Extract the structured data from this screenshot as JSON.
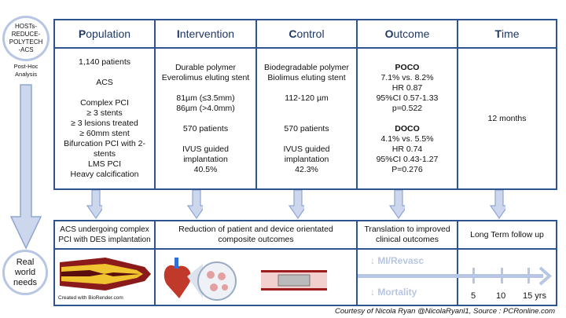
{
  "trial": {
    "name": "HOSTs-REDUCE-POLYTECH-ACS",
    "subtitle": "Post-Hoc Analysis"
  },
  "pico": {
    "headers": [
      {
        "initial": "P",
        "rest": "opulation"
      },
      {
        "initial": "I",
        "rest": "ntervention"
      },
      {
        "initial": "C",
        "rest": "ontrol"
      },
      {
        "initial": "O",
        "rest": "utcome"
      },
      {
        "initial": "T",
        "rest": "ime"
      }
    ],
    "population": [
      "1,140 patients",
      "",
      "ACS",
      "",
      "Complex PCI",
      "≥ 3 stents",
      "≥ 3 lesions treated",
      "≥ 60mm stent",
      "Bifurcation PCI with 2-",
      "stents",
      "LMS PCI",
      "Heavy calcification"
    ],
    "intervention": [
      "Durable polymer",
      "Everolimus eluting stent",
      "",
      "81µm (≤3.5mm)",
      "86µm (>4.0mm)",
      "",
      "570 patients",
      "",
      "IVUS guided",
      "implantation",
      "40.5%"
    ],
    "control": [
      "Biodegradable polymer",
      "Biolimus eluting stent",
      "",
      "112-120 µm",
      "",
      "",
      "570 patients",
      "",
      "IVUS guided",
      "implantation",
      "42.3%"
    ],
    "outcome": {
      "poco_title": "POCO",
      "poco": [
        "7.1% vs. 8.2%",
        "HR 0.87",
        "95%CI 0.57-1.33",
        "p=0.522"
      ],
      "doco_title": "DOCO",
      "doco": [
        "4.1% vs. 5.5%",
        "HR 0.74",
        "95%CI 0.43-1.27",
        "P=0.276"
      ]
    },
    "time": "12 months"
  },
  "real_world": {
    "label": "Real world needs",
    "headers": [
      "ACS undergoing complex PCI with DES implantation",
      "Reduction of patient and device orientated composite outcomes",
      "Translation to improved clinical outcomes",
      "Long Term follow up"
    ],
    "biorender": "Created with BioRender.com",
    "outcomes": [
      "↓ MI/Revasc",
      "↓ Mortality"
    ],
    "timeline": [
      "5",
      "10",
      "15 yrs"
    ]
  },
  "credit": "Courtesy of Nicola Ryan @NicolaRyanl1, Source : PCRonline.com",
  "colors": {
    "border": "#2f5590",
    "arrow": "#b7c6e2"
  }
}
